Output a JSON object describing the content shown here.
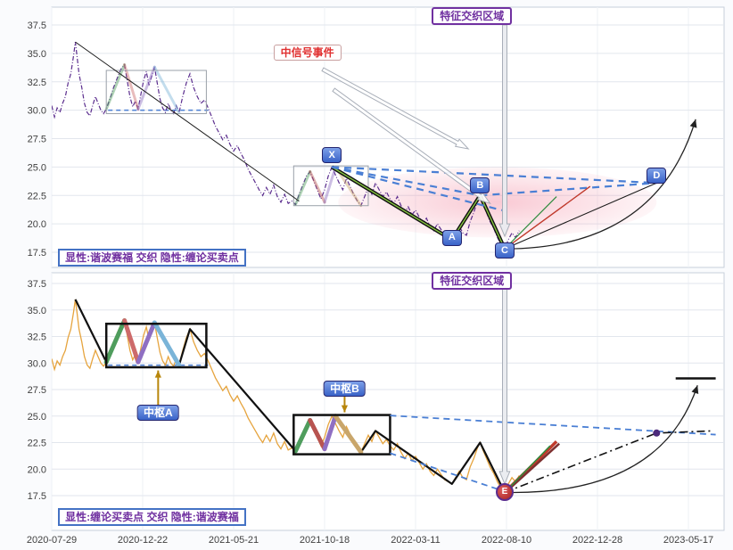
{
  "app": {
    "description": "dual-panel harmonic / chan-theory stock analysis chart"
  },
  "colors": {
    "grid_h": "#e2e6ed",
    "grid_v": "#eef1f6",
    "panel_border": "#c7cfda",
    "axis_text": "#3f3f3f",
    "price_top": "#5b2d8e",
    "price_bottom": "#e6a43e",
    "dashed_blue": "#4a7fd4",
    "pink_region": "#f2889f",
    "accent_purple": "#7030a0",
    "accent_blue_box": "#3a63c8",
    "gold_arrow": "#b8860b",
    "red_proj": "#c0392b",
    "maroon_proj": "#7e3030",
    "green_proj": "#2e8b3d",
    "harmonic_green": "#85c341",
    "dot_purple": "#4b2a7b"
  },
  "labels": [
    {
      "id": "region-label-top",
      "kind": "region",
      "panel": "T",
      "u": 4.62,
      "v": 38.25,
      "text": "特征交织区域"
    },
    {
      "id": "region-label-bottom",
      "kind": "region",
      "panel": "B",
      "u": 4.62,
      "v": 37.75,
      "text": "特征交织区域"
    },
    {
      "id": "signal-event-label",
      "kind": "signal",
      "panel": "T",
      "u": 2.81,
      "v": 35.1,
      "text": "中信号事件"
    },
    {
      "id": "legend-top",
      "kind": "legend",
      "panel": "T",
      "u": 0.07,
      "v": 17.0,
      "text": "显性:谐波赛福 交织 隐性:缠论买卖点"
    },
    {
      "id": "legend-bottom",
      "kind": "legend",
      "panel": "B",
      "u": 0.07,
      "v": 15.5,
      "text": "显性:缠论买卖点 交织 隐性:谐波赛福"
    },
    {
      "id": "pivot-a-label",
      "kind": "pivot",
      "panel": "B",
      "u": 1.17,
      "v": 25.3,
      "text": "中枢A"
    },
    {
      "id": "pivot-b-label",
      "kind": "pivot",
      "panel": "B",
      "u": 3.22,
      "v": 27.6,
      "text": "中枢B"
    },
    {
      "id": "point-label-x",
      "kind": "letter",
      "panel": "T",
      "u": 3.08,
      "v": 25.0,
      "text": "X"
    },
    {
      "id": "point-label-a",
      "kind": "letter",
      "panel": "T",
      "u": 4.4,
      "v": 18.6,
      "text": "A"
    },
    {
      "id": "point-label-b",
      "kind": "letter",
      "panel": "T",
      "u": 4.71,
      "v": 22.5,
      "text": "B"
    },
    {
      "id": "point-label-c",
      "kind": "letter",
      "panel": "T",
      "u": 4.98,
      "v": 17.8,
      "text": "C"
    },
    {
      "id": "point-label-d",
      "kind": "letter",
      "panel": "T",
      "u": 6.65,
      "v": 23.6,
      "text": "D"
    },
    {
      "id": "point-label-e",
      "kind": "emarker",
      "panel": "B",
      "u": 4.98,
      "v": 17.8,
      "text": "E"
    }
  ],
  "chart_data": {
    "type": "line",
    "title": "",
    "xlabel": "",
    "ylabel": "",
    "x_tick_labels": [
      "2020-07-29",
      "2020-12-22",
      "2021-05-21",
      "2021-10-18",
      "2022-03-11",
      "2022-08-10",
      "2022-12-28",
      "2023-05-17"
    ],
    "y_ticks": [
      37.5,
      35.0,
      32.5,
      30.0,
      27.5,
      25.0,
      22.5,
      20.0,
      17.5
    ],
    "ylim": [
      16.5,
      38.9
    ],
    "xlim": [
      0,
      7.39
    ],
    "legend_position": "none",
    "grid": true,
    "key_points": {
      "X": [
        3.08,
        25.0
      ],
      "A": [
        4.4,
        18.6
      ],
      "B": [
        4.71,
        22.5
      ],
      "C": [
        4.98,
        17.8
      ],
      "D": [
        6.65,
        23.6
      ],
      "E": [
        4.98,
        17.8
      ]
    },
    "price_points": [
      [
        0.0,
        30.4
      ],
      [
        0.03,
        29.4
      ],
      [
        0.06,
        30.2
      ],
      [
        0.09,
        29.8
      ],
      [
        0.12,
        30.6
      ],
      [
        0.15,
        31.2
      ],
      [
        0.18,
        32.4
      ],
      [
        0.21,
        33.2
      ],
      [
        0.24,
        34.8
      ],
      [
        0.26,
        36.0
      ],
      [
        0.28,
        34.6
      ],
      [
        0.3,
        33.2
      ],
      [
        0.33,
        32.0
      ],
      [
        0.36,
        30.6
      ],
      [
        0.39,
        29.8
      ],
      [
        0.42,
        29.5
      ],
      [
        0.45,
        30.4
      ],
      [
        0.48,
        31.2
      ],
      [
        0.51,
        30.6
      ],
      [
        0.54,
        30.0
      ],
      [
        0.57,
        29.7
      ],
      [
        0.6,
        30.1
      ],
      [
        0.64,
        31.0
      ],
      [
        0.68,
        32.0
      ],
      [
        0.72,
        32.8
      ],
      [
        0.76,
        33.6
      ],
      [
        0.8,
        34.0
      ],
      [
        0.83,
        32.6
      ],
      [
        0.86,
        31.2
      ],
      [
        0.89,
        30.3
      ],
      [
        0.92,
        30.8
      ],
      [
        0.95,
        30.1
      ],
      [
        0.98,
        31.4
      ],
      [
        1.01,
        32.6
      ],
      [
        1.04,
        33.4
      ],
      [
        1.07,
        32.2
      ],
      [
        1.1,
        33.0
      ],
      [
        1.13,
        33.8
      ],
      [
        1.16,
        32.4
      ],
      [
        1.19,
        31.0
      ],
      [
        1.22,
        30.2
      ],
      [
        1.25,
        29.8
      ],
      [
        1.28,
        30.6
      ],
      [
        1.31,
        30.0
      ],
      [
        1.34,
        29.7
      ],
      [
        1.37,
        30.4
      ],
      [
        1.4,
        29.8
      ],
      [
        1.44,
        31.2
      ],
      [
        1.48,
        32.4
      ],
      [
        1.52,
        33.2
      ],
      [
        1.56,
        32.0
      ],
      [
        1.6,
        31.2
      ],
      [
        1.64,
        30.6
      ],
      [
        1.68,
        30.9
      ],
      [
        1.72,
        30.2
      ],
      [
        1.76,
        29.4
      ],
      [
        1.8,
        28.6
      ],
      [
        1.84,
        28.0
      ],
      [
        1.88,
        27.4
      ],
      [
        1.92,
        27.8
      ],
      [
        1.96,
        27.0
      ],
      [
        2.0,
        26.4
      ],
      [
        2.04,
        26.9
      ],
      [
        2.08,
        26.2
      ],
      [
        2.12,
        25.6
      ],
      [
        2.16,
        24.8
      ],
      [
        2.2,
        24.2
      ],
      [
        2.24,
        23.6
      ],
      [
        2.28,
        23.0
      ],
      [
        2.32,
        22.5
      ],
      [
        2.36,
        23.2
      ],
      [
        2.4,
        22.6
      ],
      [
        2.44,
        23.4
      ],
      [
        2.48,
        22.4
      ],
      [
        2.52,
        21.9
      ],
      [
        2.56,
        22.6
      ],
      [
        2.6,
        21.8
      ],
      [
        2.64,
        22.0
      ],
      [
        2.68,
        21.7
      ],
      [
        2.72,
        22.6
      ],
      [
        2.76,
        23.4
      ],
      [
        2.8,
        24.2
      ],
      [
        2.84,
        24.6
      ],
      [
        2.88,
        23.8
      ],
      [
        2.92,
        23.0
      ],
      [
        2.96,
        22.2
      ],
      [
        3.0,
        23.0
      ],
      [
        3.04,
        24.2
      ],
      [
        3.08,
        25.0
      ],
      [
        3.12,
        24.3
      ],
      [
        3.16,
        23.6
      ],
      [
        3.2,
        23.0
      ],
      [
        3.24,
        24.0
      ],
      [
        3.28,
        23.3
      ],
      [
        3.32,
        22.6
      ],
      [
        3.36,
        22.0
      ],
      [
        3.4,
        21.6
      ],
      [
        3.44,
        22.4
      ],
      [
        3.48,
        23.2
      ],
      [
        3.52,
        22.6
      ],
      [
        3.56,
        23.6
      ],
      [
        3.6,
        23.0
      ],
      [
        3.64,
        22.4
      ],
      [
        3.68,
        22.8
      ],
      [
        3.72,
        22.2
      ],
      [
        3.76,
        21.8
      ],
      [
        3.8,
        22.4
      ],
      [
        3.84,
        21.6
      ],
      [
        3.88,
        21.0
      ],
      [
        3.92,
        21.5
      ],
      [
        3.96,
        20.8
      ],
      [
        4.0,
        21.2
      ],
      [
        4.04,
        20.6
      ],
      [
        4.08,
        20.0
      ],
      [
        4.12,
        20.5
      ],
      [
        4.16,
        19.8
      ],
      [
        4.2,
        19.4
      ],
      [
        4.24,
        20.0
      ],
      [
        4.28,
        19.5
      ],
      [
        4.32,
        19.0
      ],
      [
        4.36,
        18.8
      ],
      [
        4.4,
        18.6
      ],
      [
        4.44,
        19.2
      ],
      [
        4.48,
        19.8
      ],
      [
        4.52,
        19.2
      ],
      [
        4.56,
        19.0
      ],
      [
        4.6,
        20.2
      ],
      [
        4.64,
        21.0
      ],
      [
        4.68,
        22.0
      ],
      [
        4.71,
        22.5
      ],
      [
        4.74,
        21.8
      ],
      [
        4.78,
        21.0
      ],
      [
        4.82,
        20.2
      ],
      [
        4.86,
        19.6
      ],
      [
        4.9,
        18.8
      ],
      [
        4.94,
        18.2
      ],
      [
        4.98,
        17.8
      ],
      [
        5.02,
        18.6
      ],
      [
        5.06,
        19.2
      ],
      [
        5.1,
        18.8
      ],
      [
        5.14,
        19.4
      ]
    ],
    "strokes_a": {
      "colors": [
        "#4f9d5d",
        "#cd6a6a",
        "#8f6fc2",
        "#7ab4d8"
      ],
      "paths": [
        [
          [
            0.6,
            30.1
          ],
          [
            0.8,
            34.0
          ]
        ],
        [
          [
            0.8,
            34.0
          ],
          [
            0.95,
            30.1
          ]
        ],
        [
          [
            0.95,
            30.1
          ],
          [
            1.13,
            33.8
          ]
        ],
        [
          [
            1.13,
            33.8
          ],
          [
            1.4,
            29.8
          ]
        ]
      ]
    },
    "strokes_b": {
      "colors": [
        "#4f9d5d",
        "#b85450",
        "#8f6fc2",
        "#c9a66b"
      ],
      "paths": [
        [
          [
            2.68,
            21.7
          ],
          [
            2.84,
            24.6
          ]
        ],
        [
          [
            2.84,
            24.6
          ],
          [
            3.0,
            21.9
          ]
        ],
        [
          [
            3.0,
            21.9
          ],
          [
            3.12,
            25.0
          ]
        ],
        [
          [
            3.12,
            25.0
          ],
          [
            3.4,
            21.6
          ]
        ]
      ]
    },
    "top": {
      "price_dash": "5 2 1 2",
      "rects": [
        [
          0.6,
          29.7,
          1.7,
          33.5
        ],
        [
          2.66,
          21.6,
          3.48,
          25.1
        ]
      ],
      "hline": [
        [
          0.62,
          30.0
        ],
        [
          1.72,
          30.0
        ]
      ],
      "ellipse": {
        "cu": 4.9,
        "cv": 21.9,
        "ru": 1.75,
        "rv": 3.1
      },
      "trendline": [
        [
          0.26,
          36.0
        ],
        [
          2.72,
          22.0
        ]
      ],
      "harmonic_path": [
        [
          3.08,
          25.0
        ],
        [
          4.4,
          18.6
        ],
        [
          4.71,
          22.5
        ],
        [
          4.98,
          17.8
        ]
      ],
      "dashed": [
        [
          [
            3.08,
            25.0
          ],
          [
            6.65,
            23.6
          ]
        ],
        [
          [
            3.08,
            25.0
          ],
          [
            4.71,
            22.5
          ]
        ],
        [
          [
            3.08,
            25.0
          ],
          [
            4.95,
            21.2
          ]
        ],
        [
          [
            4.71,
            22.5
          ],
          [
            6.65,
            23.6
          ]
        ]
      ],
      "thin_black": [
        [
          [
            4.98,
            17.8
          ],
          [
            6.65,
            23.6
          ]
        ]
      ],
      "red_line": [
        [
          4.98,
          17.8
        ],
        [
          5.92,
          23.3
        ]
      ],
      "green_line": [
        [
          4.98,
          17.8
        ],
        [
          5.55,
          22.4
        ]
      ],
      "curve_arrow": {
        "p0": [
          4.98,
          17.8
        ],
        "c": [
          6.65,
          17.8
        ],
        "p1": [
          7.08,
          29.2
        ]
      },
      "outline_arrows": [
        {
          "from": [
            4.98,
            37.5
          ],
          "to": [
            4.98,
            18.9
          ],
          "w": 5,
          "fill": "#e9ebf0"
        },
        {
          "from": [
            2.98,
            33.6
          ],
          "to": [
            4.58,
            26.6
          ],
          "w": 4,
          "fill": "#ffffff"
        },
        {
          "from": [
            3.1,
            31.8
          ],
          "to": [
            4.82,
            21.8
          ],
          "w": 4,
          "fill": "#ffffff"
        }
      ]
    },
    "bottom": {
      "rects": [
        [
          0.6,
          29.6,
          1.7,
          33.7
        ],
        [
          2.66,
          21.4,
          3.72,
          25.1
        ]
      ],
      "hline": [
        [
          0.62,
          29.8
        ],
        [
          1.72,
          29.8
        ]
      ],
      "black_segments": [
        [
          [
            0.26,
            36.0
          ],
          [
            0.6,
            30.1
          ]
        ],
        [
          [
            1.4,
            29.8
          ],
          [
            1.52,
            33.2
          ],
          [
            2.68,
            21.7
          ]
        ],
        [
          [
            3.4,
            21.6
          ],
          [
            3.56,
            23.6
          ],
          [
            4.4,
            18.6
          ],
          [
            4.71,
            22.5
          ],
          [
            4.98,
            17.8
          ]
        ]
      ],
      "dashed": [
        [
          [
            3.72,
            25.05
          ],
          [
            7.3,
            23.25
          ]
        ],
        [
          [
            3.72,
            21.5
          ],
          [
            4.96,
            17.95
          ]
        ]
      ],
      "dashdot": [
        [
          4.98,
          17.8
        ],
        [
          6.65,
          23.4
        ],
        [
          7.25,
          23.6
        ]
      ],
      "dot": [
        6.65,
        23.4
      ],
      "red_proj": [
        [
          4.98,
          17.8
        ],
        [
          5.55,
          22.6
        ]
      ],
      "maroon_proj": [
        [
          5.0,
          17.9
        ],
        [
          5.58,
          22.4
        ]
      ],
      "green_proj": [
        [
          4.98,
          17.8
        ],
        [
          5.48,
          22.2
        ]
      ],
      "curve_arrow": {
        "p0": [
          4.98,
          17.8
        ],
        "c": [
          6.7,
          17.5
        ],
        "p1": [
          7.1,
          27.9
        ]
      },
      "tbar": [
        [
          6.86,
          28.55
        ],
        [
          7.3,
          28.55
        ]
      ],
      "outline_arrows": [
        {
          "from": [
            4.98,
            37.2
          ],
          "to": [
            4.98,
            18.6
          ],
          "w": 5,
          "fill": "#e9ebf0"
        }
      ],
      "pivot_arrows": [
        {
          "from": [
            1.17,
            26.0
          ],
          "to": [
            1.17,
            29.3
          ]
        },
        {
          "from": [
            3.22,
            26.9
          ],
          "to": [
            3.22,
            25.35
          ]
        }
      ]
    }
  }
}
